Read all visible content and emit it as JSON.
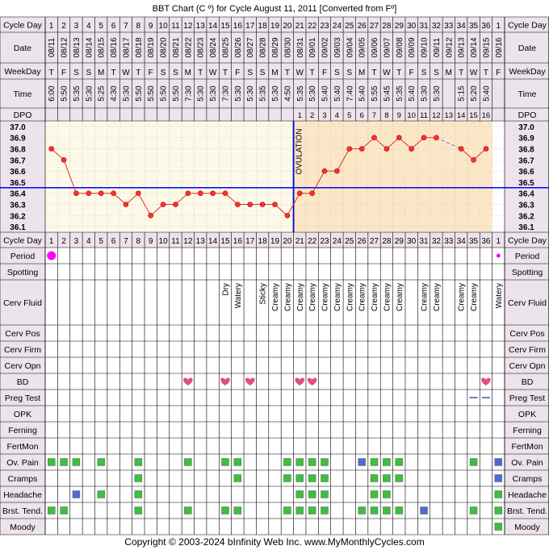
{
  "title": "BBT Chart (C º) for Cycle August 11, 2011  [Converted from Fº]",
  "footer": "Copyright © 2003-2024 bInfinity Web Inc.     www.MyMonthlyCycles.com",
  "labels": {
    "cycle_day": "Cycle Day",
    "date": "Date",
    "weekday": "WeekDay",
    "time": "Time",
    "dpo": "DPO",
    "ovulation": "OVULATION"
  },
  "row_labels": [
    "Period",
    "Spotting",
    "Cerv Fluid",
    "Cerv Pos",
    "Cerv Firm",
    "Cerv Opn",
    "BD",
    "Preg Test",
    "OPK",
    "Ferning",
    "FertMon",
    "Ov. Pain",
    "Cramps",
    "Headache",
    "Brst. Tend.",
    "Moody"
  ],
  "colors": {
    "header_bg": "#ece3ec",
    "follicular_bg": "#fdf9e8",
    "luteal_bg": "#fbe7c6",
    "coverline": "#0000ff",
    "ovulation_line": "#0000cc",
    "temp_line": "#e03030",
    "temp_point": "#ff3030",
    "period": "#ff00ff",
    "heart": "#e0507a",
    "green_box": "#44bb44",
    "blue_box": "#5566dd",
    "preg_dash": "#7777cc"
  },
  "chart_data": {
    "type": "line",
    "cycle_days": [
      "1",
      "2",
      "3",
      "4",
      "5",
      "6",
      "7",
      "8",
      "9",
      "10",
      "11",
      "12",
      "13",
      "14",
      "15",
      "16",
      "17",
      "18",
      "19",
      "20",
      "21",
      "22",
      "23",
      "24",
      "25",
      "26",
      "27",
      "28",
      "29",
      "30",
      "31",
      "32",
      "33",
      "34",
      "35",
      "36",
      "1"
    ],
    "dates": [
      "08/11",
      "08/12",
      "08/13",
      "08/14",
      "08/15",
      "08/16",
      "08/17",
      "08/18",
      "08/19",
      "08/20",
      "08/21",
      "08/22",
      "08/23",
      "08/24",
      "08/25",
      "08/26",
      "08/27",
      "08/28",
      "08/29",
      "08/30",
      "08/31",
      "09/01",
      "09/02",
      "09/03",
      "09/04",
      "09/05",
      "09/06",
      "09/07",
      "09/08",
      "09/09",
      "09/10",
      "09/11",
      "09/12",
      "09/13",
      "09/14",
      "09/15",
      "09/16"
    ],
    "weekdays": [
      "T",
      "F",
      "S",
      "S",
      "M",
      "T",
      "W",
      "T",
      "F",
      "S",
      "S",
      "M",
      "T",
      "W",
      "T",
      "F",
      "S",
      "S",
      "M",
      "T",
      "W",
      "T",
      "F",
      "S",
      "S",
      "M",
      "T",
      "W",
      "T",
      "F",
      "S",
      "S",
      "M",
      "T",
      "W",
      "T",
      "F"
    ],
    "times": [
      "6:00",
      "5:50",
      "5:35",
      "5:30",
      "5:25",
      "4:30",
      "5:30",
      "5:50",
      "5:50",
      "5:50",
      "5:50",
      "7:30",
      "5:30",
      "5:30",
      "7:30",
      "5:30",
      "5:30",
      "5:35",
      "5:30",
      "4:50",
      "5:35",
      "5:30",
      "5:40",
      "5:40",
      "7:40",
      "5:40",
      "5:55",
      "5:45",
      "5:35",
      "5:40",
      "5:30",
      "5:30",
      "",
      "5:15",
      "5:20",
      "5:40",
      ""
    ],
    "dpo": [
      "",
      "",
      "",
      "",
      "",
      "",
      "",
      "",
      "",
      "",
      "",
      "",
      "",
      "",
      "",
      "",
      "",
      "",
      "",
      "",
      "1",
      "2",
      "3",
      "4",
      "5",
      "6",
      "7",
      "8",
      "9",
      "10",
      "11",
      "12",
      "13",
      "14",
      "15",
      "16",
      ""
    ],
    "y_ticks": [
      "37.0",
      "36.9",
      "36.8",
      "36.7",
      "36.6",
      "36.5",
      "36.4",
      "36.3",
      "36.2",
      "36.1"
    ],
    "ylim": [
      36.05,
      37.05
    ],
    "temps": [
      36.8,
      36.7,
      36.4,
      36.4,
      36.4,
      36.4,
      36.3,
      36.4,
      36.2,
      36.3,
      36.3,
      36.4,
      36.4,
      36.4,
      36.4,
      36.3,
      36.3,
      36.3,
      36.3,
      36.2,
      36.4,
      36.4,
      36.6,
      36.6,
      36.8,
      36.8,
      36.9,
      36.8,
      36.9,
      36.8,
      36.9,
      36.9,
      null,
      36.8,
      36.7,
      36.8,
      null
    ],
    "coverline": 36.45,
    "ovulation_day_index": 20,
    "cervical_fluid": [
      "",
      "",
      "",
      "",
      "",
      "",
      "",
      "",
      "",
      "",
      "",
      "",
      "",
      "",
      "Dry",
      "Watery",
      "",
      "Sticky",
      "Creamy",
      "Creamy",
      "Creamy",
      "Creamy",
      "Creamy",
      "Creamy",
      "Creamy",
      "Creamy",
      "Creamy",
      "Creamy",
      "Creamy",
      "",
      "Creamy",
      "Creamy",
      "",
      "Creamy",
      "Creamy",
      "",
      "Watery"
    ],
    "period": [
      1,
      0,
      0,
      0,
      0,
      0,
      0,
      0,
      0,
      0,
      0,
      0,
      0,
      0,
      0,
      0,
      0,
      0,
      0,
      0,
      0,
      0,
      0,
      0,
      0,
      0,
      0,
      0,
      0,
      0,
      0,
      0,
      0,
      0,
      0,
      0,
      0.5
    ],
    "bd": [
      0,
      0,
      0,
      0,
      0,
      0,
      0,
      0,
      0,
      0,
      0,
      1,
      0,
      0,
      1,
      0,
      1,
      0,
      0,
      0,
      1,
      1,
      0,
      0,
      0,
      0,
      0,
      0,
      0,
      0,
      0,
      0,
      0,
      0,
      0,
      1,
      0
    ],
    "preg_test": [
      0,
      0,
      0,
      0,
      0,
      0,
      0,
      0,
      0,
      0,
      0,
      0,
      0,
      0,
      0,
      0,
      0,
      0,
      0,
      0,
      0,
      0,
      0,
      0,
      0,
      0,
      0,
      0,
      0,
      0,
      0,
      0,
      0,
      0,
      1,
      1,
      0
    ],
    "ov_pain": [
      "g",
      "g",
      "g",
      "",
      "g",
      "",
      "",
      "g",
      "",
      "",
      "",
      "g",
      "",
      "",
      "g",
      "g",
      "",
      "",
      "",
      "g",
      "g",
      "g",
      "g",
      "",
      "",
      "b",
      "g",
      "g",
      "g",
      "",
      "",
      "",
      "",
      "",
      "g",
      "",
      "b"
    ],
    "cramps": [
      "",
      "",
      "",
      "",
      "",
      "",
      "",
      "g",
      "",
      "",
      "",
      "",
      "",
      "",
      "",
      "g",
      "",
      "",
      "",
      "g",
      "g",
      "g",
      "g",
      "",
      "",
      "",
      "g",
      "g",
      "g",
      "",
      "",
      "",
      "",
      "",
      "",
      "",
      "b"
    ],
    "headache": [
      "",
      "",
      "b",
      "",
      "g",
      "",
      "",
      "g",
      "",
      "",
      "",
      "",
      "",
      "",
      "",
      "",
      "",
      "",
      "",
      "",
      "g",
      "g",
      "g",
      "",
      "",
      "",
      "g",
      "g",
      "",
      "",
      "",
      "",
      "",
      "",
      "",
      "",
      "g"
    ],
    "brst_tend": [
      "g",
      "g",
      "",
      "",
      "",
      "",
      "",
      "g",
      "",
      "",
      "",
      "g",
      "",
      "",
      "g",
      "g",
      "",
      "",
      "",
      "g",
      "g",
      "g",
      "g",
      "",
      "",
      "g",
      "g",
      "g",
      "g",
      "",
      "b",
      "",
      "",
      "",
      "g",
      "",
      "g"
    ],
    "moody": [
      "",
      "",
      "",
      "",
      "",
      "",
      "",
      "",
      "",
      "",
      "",
      "",
      "",
      "",
      "",
      "",
      "",
      "",
      "",
      "",
      "",
      "",
      "",
      "",
      "",
      "",
      "",
      "",
      "",
      "",
      "",
      "",
      "",
      "",
      "",
      "",
      "g"
    ]
  }
}
